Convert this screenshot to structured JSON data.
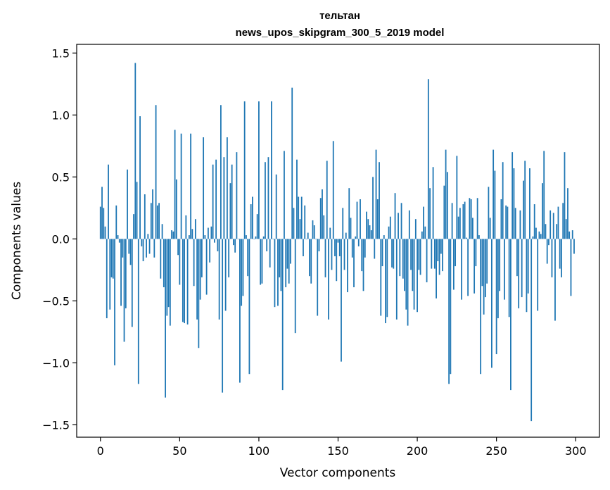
{
  "chart_data": {
    "type": "bar",
    "title_line1": "тельтан",
    "title_line2": "news_upos_skipgram_300_5_2019 model",
    "xlabel": "Vector components",
    "ylabel": "Components values",
    "xlim": [
      -15,
      315
    ],
    "ylim": [
      -1.6,
      1.57
    ],
    "xticks": [
      0,
      50,
      100,
      150,
      200,
      250,
      300
    ],
    "xtick_labels": [
      "0",
      "50",
      "100",
      "150",
      "200",
      "250",
      "300"
    ],
    "yticks": [
      -1.5,
      -1.0,
      -0.5,
      0.0,
      0.5,
      1.0,
      1.5
    ],
    "ytick_labels": [
      "−1.5",
      "−1.0",
      "−0.5",
      "0.0",
      "0.5",
      "1.0",
      "1.5"
    ],
    "grid": false,
    "bar_color": "#1f77b4",
    "values": [
      0.26,
      0.42,
      0.25,
      0.1,
      -0.64,
      0.6,
      -0.57,
      -0.31,
      -0.32,
      -1.02,
      0.27,
      0.03,
      -0.03,
      -0.54,
      -0.15,
      -0.83,
      -0.56,
      0.56,
      -0.12,
      -0.21,
      -0.71,
      0.2,
      1.42,
      0.46,
      -1.17,
      0.99,
      -0.06,
      -0.18,
      0.36,
      -0.15,
      0.04,
      -0.12,
      0.29,
      0.4,
      -0.15,
      1.08,
      0.27,
      0.29,
      -0.32,
      0.12,
      -0.39,
      -1.28,
      -0.62,
      -0.55,
      -0.7,
      0.07,
      0.06,
      0.88,
      0.48,
      -0.13,
      -0.37,
      0.85,
      -0.67,
      -0.68,
      0.19,
      -0.69,
      0.03,
      0.85,
      0.08,
      -0.38,
      0.16,
      -0.65,
      -0.88,
      -0.49,
      -0.31,
      0.82,
      0.03,
      -0.45,
      0.09,
      -0.19,
      0.1,
      0.6,
      -0.03,
      0.64,
      -0.1,
      -0.65,
      1.08,
      -1.24,
      0.66,
      -0.58,
      0.82,
      -0.31,
      0.45,
      0.6,
      -0.05,
      -0.11,
      0.7,
      0.0,
      -1.16,
      -0.54,
      -0.46,
      1.11,
      0.03,
      -0.3,
      -1.09,
      0.28,
      0.34,
      0.0,
      0.02,
      0.2,
      1.11,
      -0.37,
      -0.36,
      0.02,
      0.62,
      -0.1,
      0.66,
      -0.23,
      1.11,
      0.0,
      -0.55,
      0.52,
      -0.54,
      -0.31,
      -0.42,
      -1.22,
      0.71,
      -0.39,
      -0.24,
      -0.36,
      -0.2,
      1.22,
      0.25,
      -0.76,
      0.64,
      0.34,
      0.16,
      0.34,
      -0.14,
      0.27,
      0.0,
      0.05,
      -0.3,
      -0.36,
      0.15,
      0.11,
      0.0,
      -0.62,
      -0.1,
      0.33,
      0.4,
      0.19,
      -0.31,
      0.63,
      -0.65,
      0.09,
      -0.25,
      0.79,
      -0.14,
      -0.34,
      -0.03,
      -0.14,
      -0.99,
      0.25,
      -0.25,
      0.05,
      -0.43,
      0.41,
      0.17,
      -0.15,
      -0.39,
      0.02,
      0.3,
      -0.06,
      0.32,
      -0.26,
      -0.42,
      -0.15,
      0.22,
      0.16,
      0.11,
      0.07,
      0.5,
      -0.16,
      0.72,
      0.32,
      0.62,
      -0.62,
      -0.22,
      0.03,
      -0.68,
      -0.63,
      0.1,
      0.18,
      -0.23,
      -0.24,
      0.37,
      -0.65,
      0.21,
      -0.3,
      0.29,
      -0.32,
      -0.42,
      -0.57,
      -0.7,
      0.23,
      -0.25,
      -0.42,
      -0.57,
      0.16,
      -0.59,
      -0.25,
      -0.29,
      0.06,
      0.26,
      0.1,
      -0.35,
      1.29,
      0.41,
      -0.24,
      0.58,
      -0.24,
      -0.48,
      -0.18,
      -0.29,
      -0.12,
      -0.26,
      0.43,
      0.72,
      0.54,
      -1.17,
      -1.09,
      0.29,
      -0.41,
      -0.22,
      0.67,
      0.18,
      0.25,
      -0.49,
      0.28,
      0.3,
      0.01,
      -0.46,
      0.33,
      0.32,
      0.17,
      -0.44,
      -0.22,
      0.33,
      0.03,
      -1.09,
      -0.38,
      -0.61,
      -0.47,
      -0.36,
      0.42,
      0.17,
      -1.04,
      0.72,
      0.55,
      -0.93,
      -0.64,
      -0.42,
      0.32,
      0.62,
      -0.49,
      0.27,
      0.26,
      -0.63,
      -1.22,
      0.7,
      0.57,
      0.25,
      -0.3,
      -0.56,
      0.23,
      -0.47,
      0.47,
      0.63,
      -0.59,
      -0.44,
      0.57,
      -1.47,
      0.02,
      0.28,
      0.09,
      -0.58,
      0.06,
      0.04,
      0.45,
      0.71,
      0.12,
      -0.2,
      -0.05,
      0.23,
      -0.31,
      0.21,
      -0.66,
      0.12,
      0.26,
      -0.24,
      -0.31,
      0.29,
      0.7,
      0.16,
      0.41,
      0.06,
      -0.46,
      0.07,
      -0.12
    ]
  }
}
